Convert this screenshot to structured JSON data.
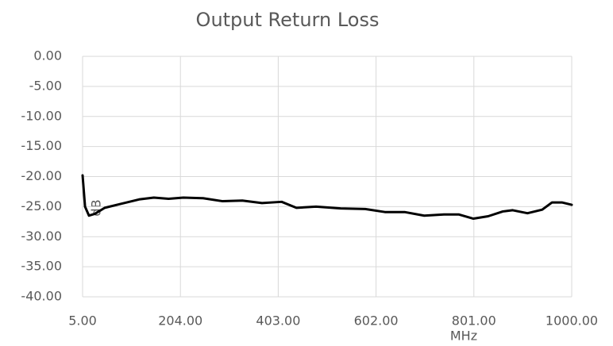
{
  "chart_data": {
    "type": "line",
    "title": "Output Return Loss",
    "x_label": "MHz",
    "y_label": "dB",
    "x": [
      5,
      10,
      18,
      30,
      50,
      80,
      120,
      150,
      180,
      210,
      250,
      290,
      330,
      370,
      410,
      440,
      480,
      530,
      580,
      620,
      660,
      700,
      740,
      770,
      800,
      830,
      860,
      880,
      910,
      940,
      960,
      980,
      1000
    ],
    "series": [
      {
        "name": "Output Return Loss",
        "color": "#000000",
        "values": [
          -19.8,
          -25.0,
          -26.5,
          -26.2,
          -25.2,
          -24.6,
          -23.8,
          -23.5,
          -23.7,
          -23.5,
          -23.6,
          -24.1,
          -24.0,
          -24.4,
          -24.2,
          -25.2,
          -25.0,
          -25.3,
          -25.4,
          -25.9,
          -25.9,
          -26.5,
          -26.3,
          -26.3,
          -27.0,
          -26.6,
          -25.8,
          -25.6,
          -26.1,
          -25.5,
          -24.3,
          -24.3,
          -24.7
        ]
      }
    ],
    "xlim": [
      5,
      1000
    ],
    "xticks": [
      {
        "value": 5,
        "label": "5.00"
      },
      {
        "value": 204,
        "label": "204.00"
      },
      {
        "value": 403,
        "label": "403.00"
      },
      {
        "value": 602,
        "label": "602.00"
      },
      {
        "value": 801,
        "label": "801.00"
      },
      {
        "value": 1000,
        "label": "1000.00"
      }
    ],
    "ylim": [
      -40,
      0
    ],
    "yticks": [
      {
        "value": 0,
        "label": "0.00"
      },
      {
        "value": -5,
        "label": "-5.00"
      },
      {
        "value": -10,
        "label": "-10.00"
      },
      {
        "value": -15,
        "label": "-15.00"
      },
      {
        "value": -20,
        "label": "-20.00"
      },
      {
        "value": -25,
        "label": "-25.00"
      },
      {
        "value": -30,
        "label": "-30.00"
      },
      {
        "value": -35,
        "label": "-35.00"
      },
      {
        "value": -40,
        "label": "-40.00"
      }
    ],
    "grid": true
  }
}
